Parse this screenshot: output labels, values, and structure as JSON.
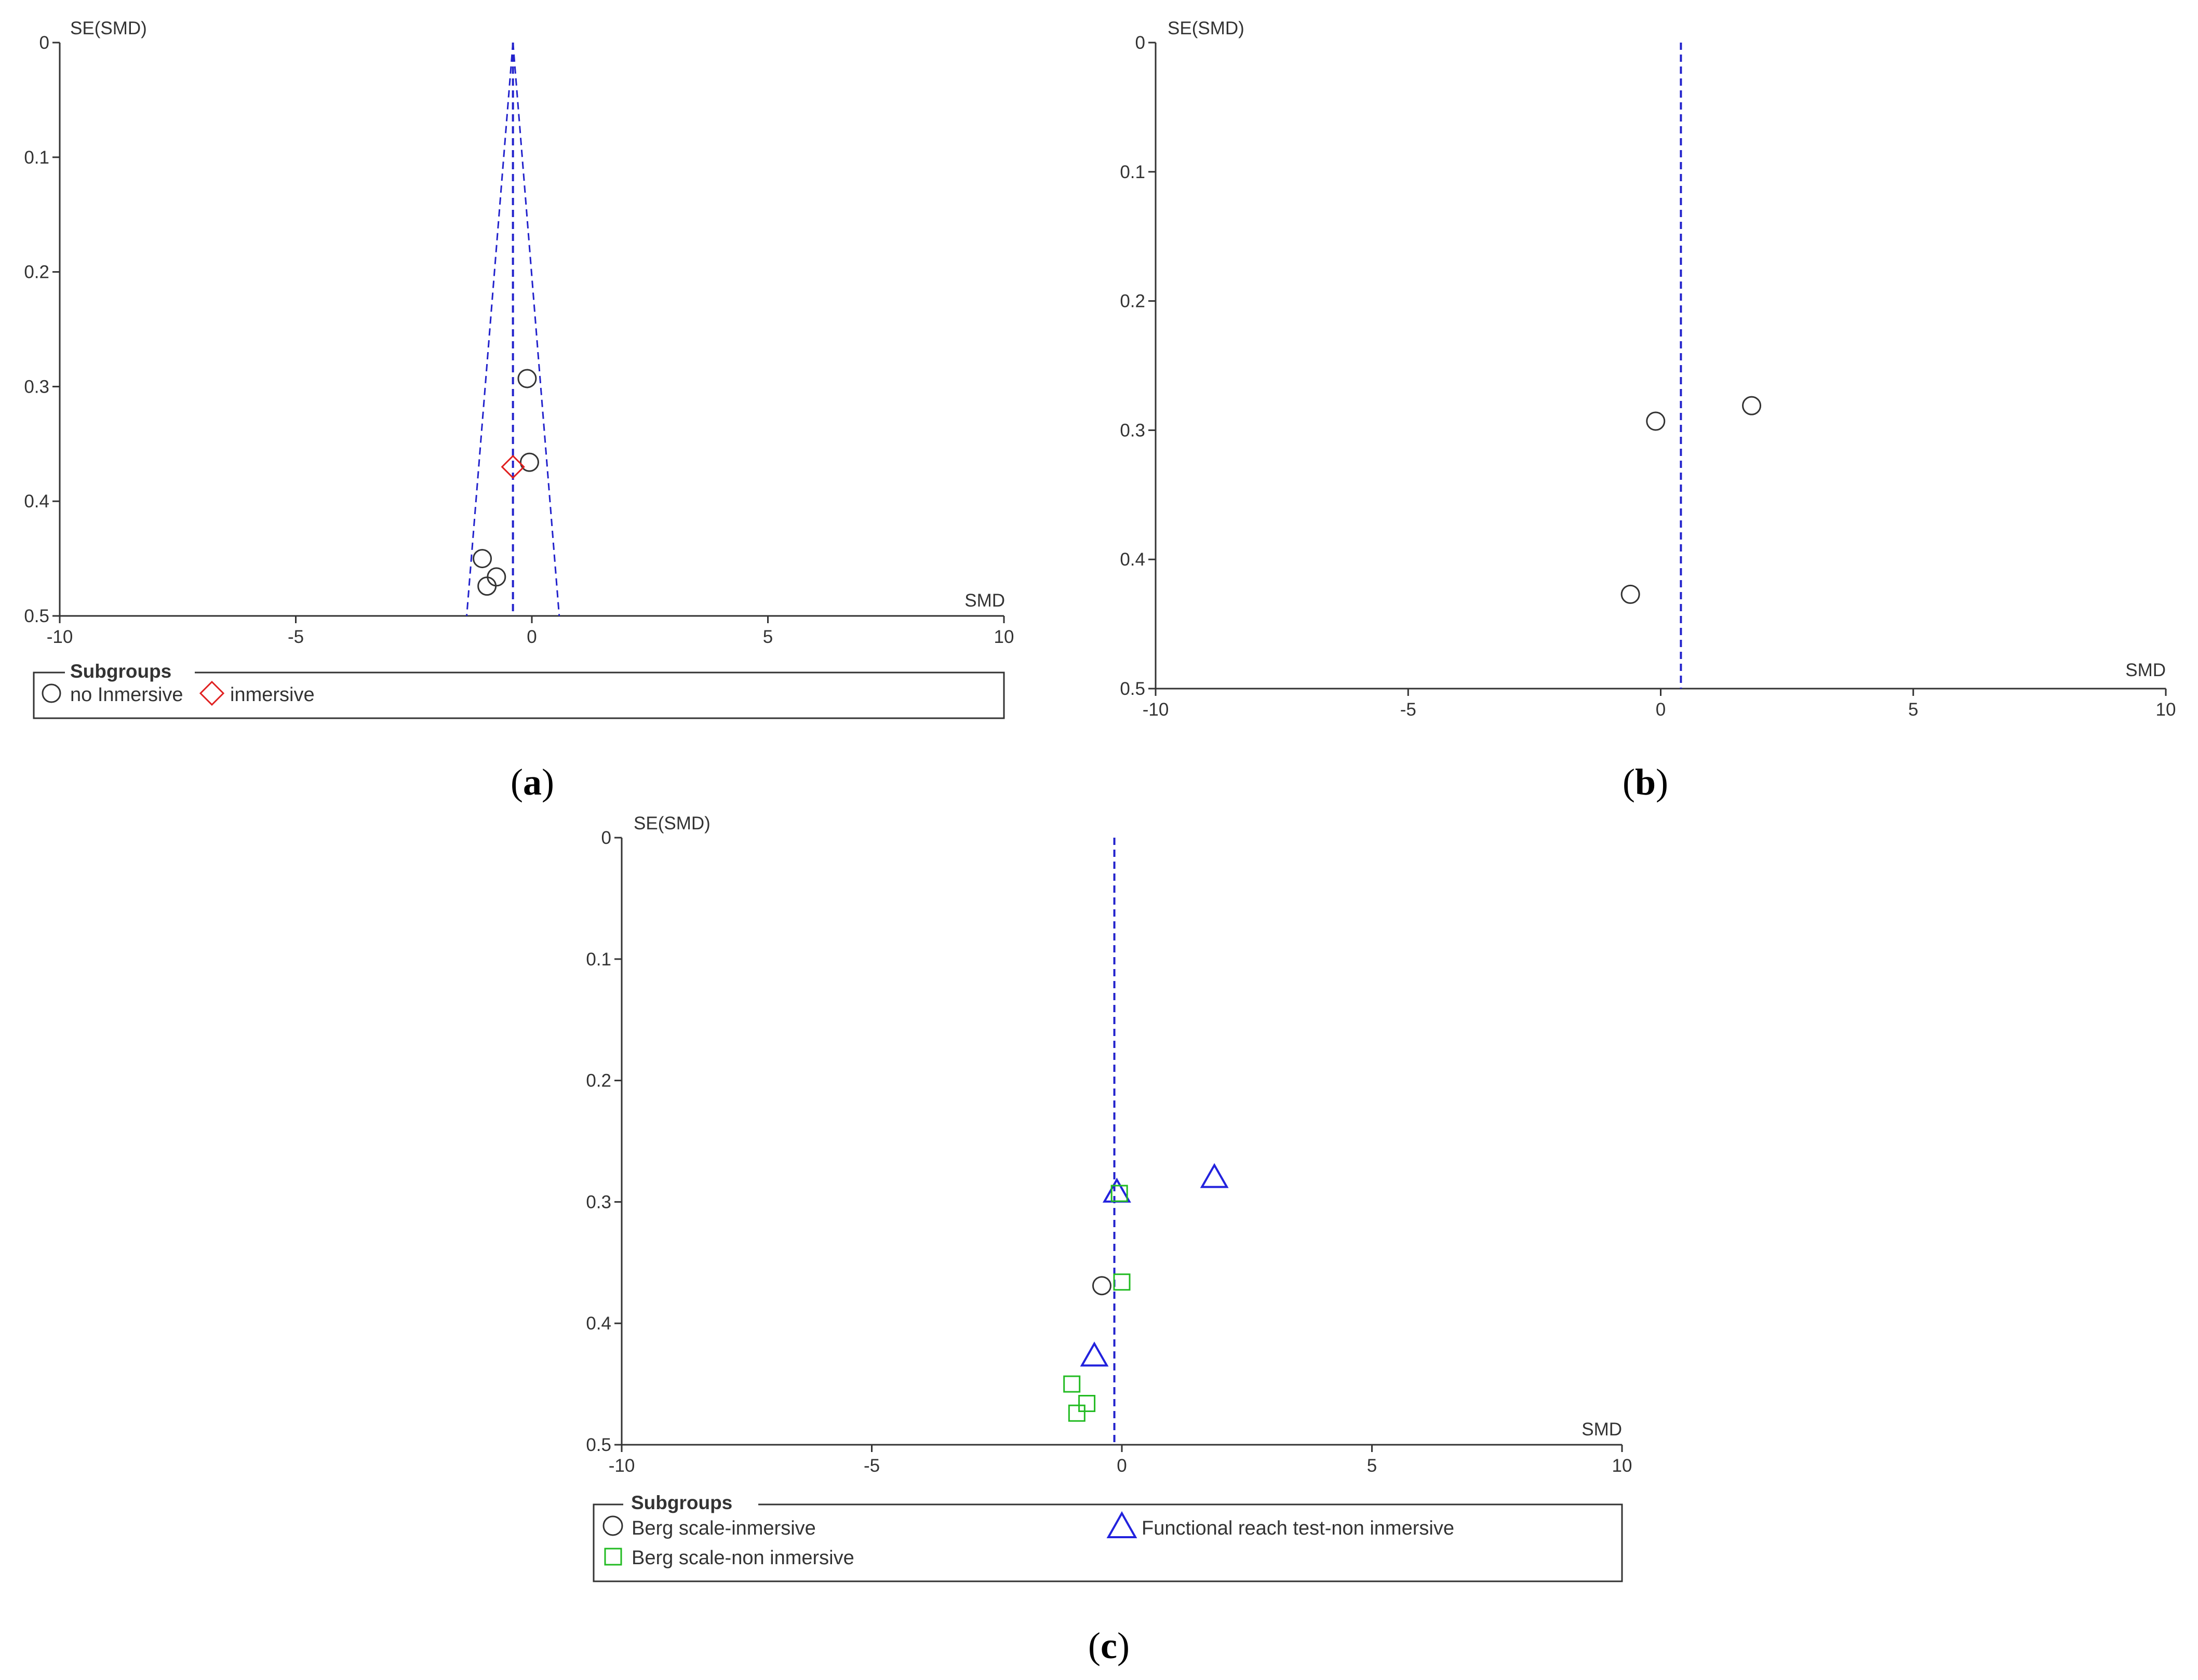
{
  "panels": [
    {
      "label": "a",
      "x_axis_label": "SMD",
      "y_axis_label": "SE(SMD)",
      "legend": {
        "title": "Subgroups",
        "items": [
          "no Inmersive",
          "inmersive"
        ]
      }
    },
    {
      "label": "b",
      "x_axis_label": "SMD",
      "y_axis_label": "SE(SMD)"
    },
    {
      "label": "c",
      "x_axis_label": "SMD",
      "y_axis_label": "SE(SMD)",
      "legend": {
        "title": "Subgroups",
        "items": [
          "Berg scale-inmersive",
          "Functional reach test-non inmersive",
          "Berg scale-non inmersive"
        ]
      }
    }
  ],
  "chart_data": [
    {
      "type": "scatter",
      "subtype": "funnel-plot",
      "xlabel": "SMD",
      "ylabel": "SE(SMD)",
      "xlim": [
        -10,
        10
      ],
      "ylim": [
        0,
        0.5
      ],
      "y_inverted": true,
      "xticks": [
        "-10",
        "-5",
        "0",
        "5",
        "10"
      ],
      "yticks": [
        "0",
        "0.1",
        "0.2",
        "0.3",
        "0.4",
        "0.5"
      ],
      "reference_line_x": -0.4,
      "funnel": true,
      "series": [
        {
          "name": "no Inmersive",
          "marker": "circle",
          "color": "#333333",
          "points": [
            [
              -0.1,
              0.293
            ],
            [
              -0.05,
              0.366
            ],
            [
              -1.05,
              0.45
            ],
            [
              -0.75,
              0.466
            ],
            [
              -0.95,
              0.474
            ]
          ]
        },
        {
          "name": "inmersive",
          "marker": "diamond",
          "color": "#e02020",
          "points": [
            [
              -0.4,
              0.37
            ]
          ]
        }
      ]
    },
    {
      "type": "scatter",
      "subtype": "funnel-plot",
      "xlabel": "SMD",
      "ylabel": "SE(SMD)",
      "xlim": [
        -10,
        10
      ],
      "ylim": [
        0,
        0.5
      ],
      "y_inverted": true,
      "xticks": [
        "-10",
        "-5",
        "0",
        "5",
        "10"
      ],
      "yticks": [
        "0",
        "0.1",
        "0.2",
        "0.3",
        "0.4",
        "0.5"
      ],
      "reference_line_x": 0.4,
      "funnel": false,
      "series": [
        {
          "marker": "circle",
          "color": "#333333",
          "points": [
            [
              -0.1,
              0.293
            ],
            [
              1.8,
              0.281
            ],
            [
              -0.6,
              0.427
            ]
          ]
        }
      ]
    },
    {
      "type": "scatter",
      "subtype": "funnel-plot",
      "xlabel": "SMD",
      "ylabel": "SE(SMD)",
      "xlim": [
        -10,
        10
      ],
      "ylim": [
        0,
        0.5
      ],
      "y_inverted": true,
      "xticks": [
        "-10",
        "-5",
        "0",
        "5",
        "10"
      ],
      "yticks": [
        "0",
        "0.1",
        "0.2",
        "0.3",
        "0.4",
        "0.5"
      ],
      "reference_line_x": -0.15,
      "funnel": false,
      "series": [
        {
          "name": "Berg scale-inmersive",
          "marker": "circle",
          "color": "#333333",
          "points": [
            [
              -0.4,
              0.369
            ]
          ]
        },
        {
          "name": "Functional reach test-non inmersive",
          "marker": "triangle",
          "color": "#2222dd",
          "points": [
            [
              -0.1,
              0.292
            ],
            [
              1.85,
              0.28
            ],
            [
              -0.55,
              0.427
            ]
          ]
        },
        {
          "name": "Berg scale-non inmersive",
          "marker": "square",
          "color": "#22bb22",
          "points": [
            [
              -0.05,
              0.293
            ],
            [
              0.0,
              0.366
            ],
            [
              -1.0,
              0.45
            ],
            [
              -0.7,
              0.466
            ],
            [
              -0.9,
              0.474
            ]
          ]
        }
      ]
    }
  ]
}
